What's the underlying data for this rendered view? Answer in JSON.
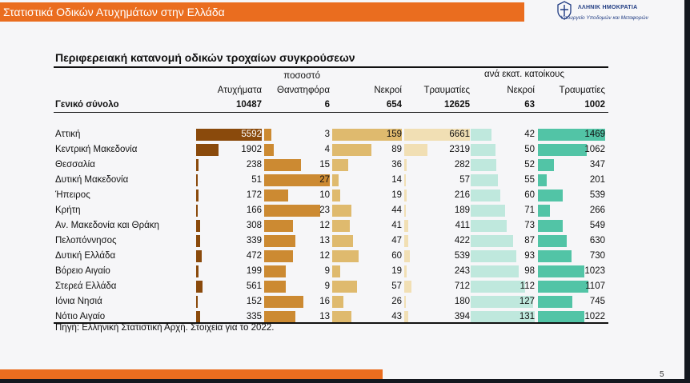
{
  "slide": {
    "title": "Στατιστικά Οδικών Ατυχημάτων στην Ελλάδα",
    "page_number": "5",
    "colors": {
      "accent_orange": "#ea6d1f",
      "background": "#f6f6f8"
    }
  },
  "logo": {
    "line1": "ΛΛΗΝΙΚ  ΗΜΟΚΡΑΤΙΑ",
    "line2": "Υπουργείο Υποδομών και Μεταφορών",
    "icon": "greek-emblem-icon"
  },
  "table": {
    "title": "Περιφερειακή κατανομή οδικών τροχαίων συγκρούσεων",
    "group_header": "ανά εκατ. κατοίκους",
    "columns": [
      "Ατυχήματα",
      "ποσοστό Θανατηφόρα",
      "Νεκροί",
      "Τραυματίες",
      "Νεκροί",
      "Τραυματίες"
    ],
    "column_header_line1": "ποσοστό",
    "column_header_line2": "Θανατηφόρα",
    "total": {
      "label": "Γενικό σύνολο",
      "accidents": "10487",
      "fatal_pct": "6",
      "deaths": "654",
      "injured": "12625",
      "deaths_per_million": "63",
      "injured_per_million": "1002"
    },
    "bar_colors": {
      "accidents": "#8a4a0c",
      "fatal_pct": "#cc8a32",
      "deaths": "#dfba6e",
      "injured": "#f1dfb4",
      "deaths_per_million": "#bfe8dd",
      "injured_per_million": "#52c4a6"
    },
    "rows": [
      {
        "region": "Αττική",
        "accidents": "5592",
        "fatal_pct": "3",
        "deaths": "159",
        "injured": "6661",
        "deaths_per_million": "42",
        "injured_per_million": "1469"
      },
      {
        "region": "Κεντρική Μακεδονία",
        "accidents": "1902",
        "fatal_pct": "4",
        "deaths": "89",
        "injured": "2319",
        "deaths_per_million": "50",
        "injured_per_million": "1062"
      },
      {
        "region": "Θεσσαλία",
        "accidents": "238",
        "fatal_pct": "15",
        "deaths": "36",
        "injured": "282",
        "deaths_per_million": "52",
        "injured_per_million": "347"
      },
      {
        "region": "Δυτική Μακεδονία",
        "accidents": "51",
        "fatal_pct": "27",
        "deaths": "14",
        "injured": "57",
        "deaths_per_million": "55",
        "injured_per_million": "201"
      },
      {
        "region": "Ήπειρος",
        "accidents": "172",
        "fatal_pct": "10",
        "deaths": "19",
        "injured": "216",
        "deaths_per_million": "60",
        "injured_per_million": "539"
      },
      {
        "region": "Κρήτη",
        "accidents": "166",
        "fatal_pct": "23",
        "deaths": "44",
        "injured": "189",
        "deaths_per_million": "71",
        "injured_per_million": "266"
      },
      {
        "region": "Αν. Μακεδονία και Θράκη",
        "accidents": "308",
        "fatal_pct": "12",
        "deaths": "41",
        "injured": "411",
        "deaths_per_million": "73",
        "injured_per_million": "549"
      },
      {
        "region": "Πελοπόννησος",
        "accidents": "339",
        "fatal_pct": "13",
        "deaths": "47",
        "injured": "422",
        "deaths_per_million": "87",
        "injured_per_million": "630"
      },
      {
        "region": "Δυτική Ελλάδα",
        "accidents": "472",
        "fatal_pct": "12",
        "deaths": "60",
        "injured": "539",
        "deaths_per_million": "93",
        "injured_per_million": "730"
      },
      {
        "region": "Βόρειο Αιγαίο",
        "accidents": "199",
        "fatal_pct": "9",
        "deaths": "19",
        "injured": "243",
        "deaths_per_million": "98",
        "injured_per_million": "1023"
      },
      {
        "region": "Στερεά Ελλάδα",
        "accidents": "561",
        "fatal_pct": "9",
        "deaths": "57",
        "injured": "712",
        "deaths_per_million": "112",
        "injured_per_million": "1107"
      },
      {
        "region": "Ιόνια Νησιά",
        "accidents": "152",
        "fatal_pct": "16",
        "deaths": "26",
        "injured": "180",
        "deaths_per_million": "127",
        "injured_per_million": "745"
      },
      {
        "region": "Νότιο Αιγαίο",
        "accidents": "335",
        "fatal_pct": "13",
        "deaths": "43",
        "injured": "394",
        "deaths_per_million": "131",
        "injured_per_million": "1022"
      }
    ],
    "source": "Πηγή: Ελληνική Στατιστική Αρχή. Στοιχεία για το 2022."
  }
}
